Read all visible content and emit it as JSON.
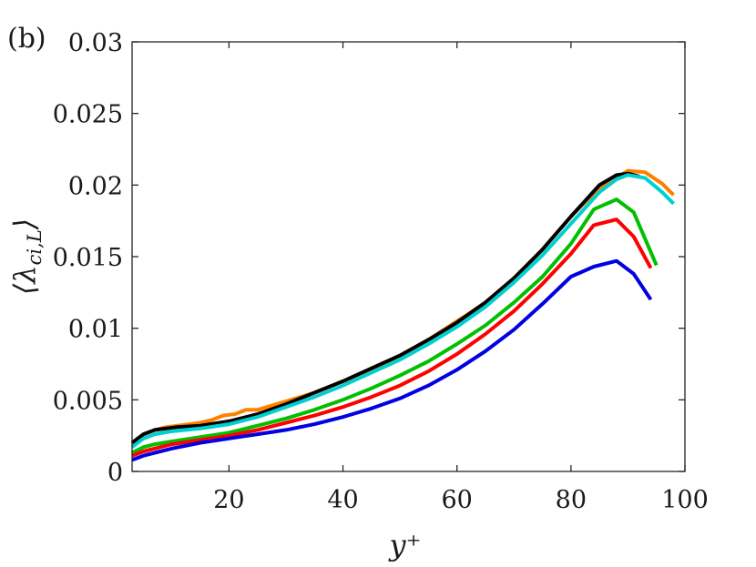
{
  "chart_data": {
    "type": "line",
    "panel_label": "(b)",
    "xlabel": "y⁺",
    "ylabel": "⟨λ",
    "ylabel_sub": "ci,L",
    "ylabel_close": "⟩",
    "xlim": [
      3,
      100
    ],
    "ylim": [
      0,
      0.03
    ],
    "x_ticks": [
      20,
      40,
      60,
      80,
      100
    ],
    "x_tick_labels": [
      "20",
      "40",
      "60",
      "80",
      "100"
    ],
    "y_ticks": [
      0,
      0.005,
      0.01,
      0.015,
      0.02,
      0.025,
      0.03
    ],
    "y_tick_labels": [
      "0",
      "0.005",
      "0.01",
      "0.015",
      "0.02",
      "0.025",
      "0.03"
    ],
    "grid": false,
    "series": [
      {
        "color": "#ff8000",
        "x": [
          3,
          5,
          7,
          9,
          11,
          13,
          15,
          17,
          19,
          21,
          23,
          25,
          30,
          35,
          40,
          45,
          47,
          50,
          55,
          60,
          62,
          65,
          70,
          75,
          80,
          85,
          88,
          90,
          93,
          96,
          98
        ],
        "y": [
          0.0019,
          0.0026,
          0.0029,
          0.0031,
          0.0032,
          0.0033,
          0.0034,
          0.0036,
          0.0039,
          0.004,
          0.0043,
          0.0043,
          0.0049,
          0.0055,
          0.0063,
          0.0071,
          0.0075,
          0.0081,
          0.0092,
          0.0105,
          0.011,
          0.0118,
          0.0135,
          0.0155,
          0.0178,
          0.0198,
          0.0205,
          0.021,
          0.0209,
          0.0201,
          0.0193
        ]
      },
      {
        "color": "#000000",
        "x": [
          3,
          5,
          7,
          9,
          11,
          15,
          20,
          25,
          30,
          35,
          40,
          45,
          50,
          55,
          60,
          65,
          70,
          75,
          80,
          85,
          88,
          90,
          92
        ],
        "y": [
          0.002,
          0.0026,
          0.0029,
          0.003,
          0.0031,
          0.0032,
          0.0035,
          0.004,
          0.0047,
          0.0055,
          0.0063,
          0.0072,
          0.0081,
          0.0092,
          0.0104,
          0.0118,
          0.0135,
          0.0155,
          0.0178,
          0.02,
          0.0207,
          0.0208,
          0.0206
        ]
      },
      {
        "color": "#00d0d0",
        "x": [
          3,
          5,
          7,
          10,
          15,
          20,
          25,
          30,
          35,
          40,
          45,
          50,
          55,
          60,
          65,
          70,
          75,
          80,
          85,
          88,
          90,
          93,
          96,
          98
        ],
        "y": [
          0.0017,
          0.0023,
          0.0026,
          0.0028,
          0.003,
          0.0033,
          0.0038,
          0.0045,
          0.0052,
          0.006,
          0.0069,
          0.0078,
          0.0089,
          0.0101,
          0.0115,
          0.0132,
          0.0151,
          0.0173,
          0.0195,
          0.0204,
          0.0207,
          0.0205,
          0.0195,
          0.0187
        ]
      },
      {
        "color": "#00c000",
        "x": [
          3,
          5,
          7,
          10,
          15,
          20,
          25,
          30,
          35,
          40,
          45,
          50,
          55,
          60,
          65,
          70,
          75,
          80,
          84,
          88,
          91,
          95
        ],
        "y": [
          0.0013,
          0.0017,
          0.0019,
          0.0021,
          0.0024,
          0.0027,
          0.0032,
          0.0037,
          0.0043,
          0.005,
          0.0058,
          0.0067,
          0.0077,
          0.0089,
          0.0102,
          0.0118,
          0.0136,
          0.0159,
          0.0183,
          0.019,
          0.0181,
          0.0144
        ]
      },
      {
        "color": "#ff0000",
        "x": [
          3,
          5,
          7,
          10,
          15,
          20,
          25,
          30,
          35,
          40,
          45,
          50,
          55,
          60,
          65,
          70,
          75,
          80,
          84,
          88,
          91,
          94
        ],
        "y": [
          0.0011,
          0.0014,
          0.0016,
          0.0019,
          0.0022,
          0.0025,
          0.0029,
          0.0034,
          0.0039,
          0.0045,
          0.0052,
          0.006,
          0.007,
          0.0082,
          0.0096,
          0.0112,
          0.0131,
          0.0152,
          0.0172,
          0.0176,
          0.0164,
          0.0142
        ]
      },
      {
        "color": "#0000e0",
        "x": [
          3,
          5,
          7,
          10,
          15,
          20,
          25,
          30,
          35,
          40,
          45,
          50,
          55,
          60,
          65,
          70,
          75,
          80,
          84,
          88,
          91,
          94
        ],
        "y": [
          0.0008,
          0.0011,
          0.0013,
          0.0016,
          0.002,
          0.0023,
          0.0026,
          0.0029,
          0.0033,
          0.0038,
          0.0044,
          0.0051,
          0.006,
          0.0071,
          0.0084,
          0.0099,
          0.0117,
          0.0136,
          0.0143,
          0.0147,
          0.0138,
          0.012
        ]
      }
    ]
  }
}
